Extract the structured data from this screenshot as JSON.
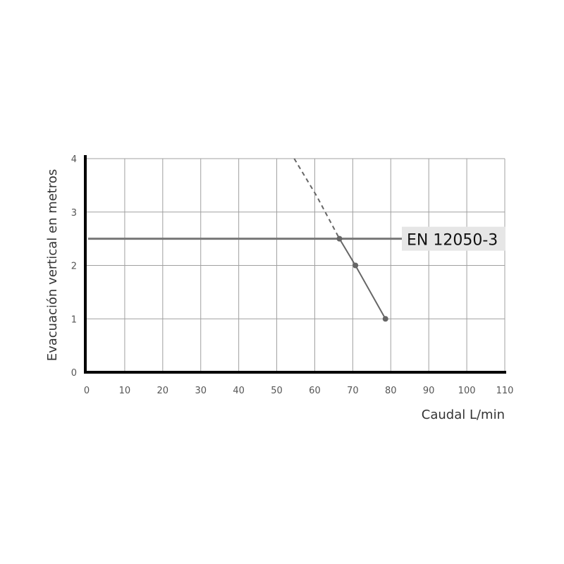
{
  "chart_data": {
    "type": "line",
    "title": "",
    "xlabel": "Caudal L/min",
    "ylabel": "Evacuación vertical en metros",
    "xlim": [
      0,
      110
    ],
    "ylim": [
      0,
      4
    ],
    "x_ticks": [
      "0",
      "10",
      "20",
      "30",
      "40",
      "50",
      "60",
      "70",
      "80",
      "90",
      "100",
      "110"
    ],
    "y_ticks": [
      "0",
      "1",
      "2",
      "3",
      "4"
    ],
    "grid": true,
    "series": [
      {
        "style": "solid",
        "markers": true,
        "points": [
          [
            66.5,
            2.5
          ],
          [
            70.7,
            2.0
          ],
          [
            78.6,
            1.0
          ]
        ]
      },
      {
        "style": "dashed",
        "markers": false,
        "points": [
          [
            54.6,
            4.0
          ],
          [
            60.5,
            3.3
          ],
          [
            66.5,
            2.5
          ]
        ]
      }
    ],
    "reference_line": {
      "y": 2.5,
      "label": "EN 12050-3"
    },
    "colors": {
      "grid": "#a0a0a0",
      "axis": "#000000",
      "curve": "#666666",
      "reference": "#777777",
      "label_box": "#e6e6e6"
    }
  }
}
